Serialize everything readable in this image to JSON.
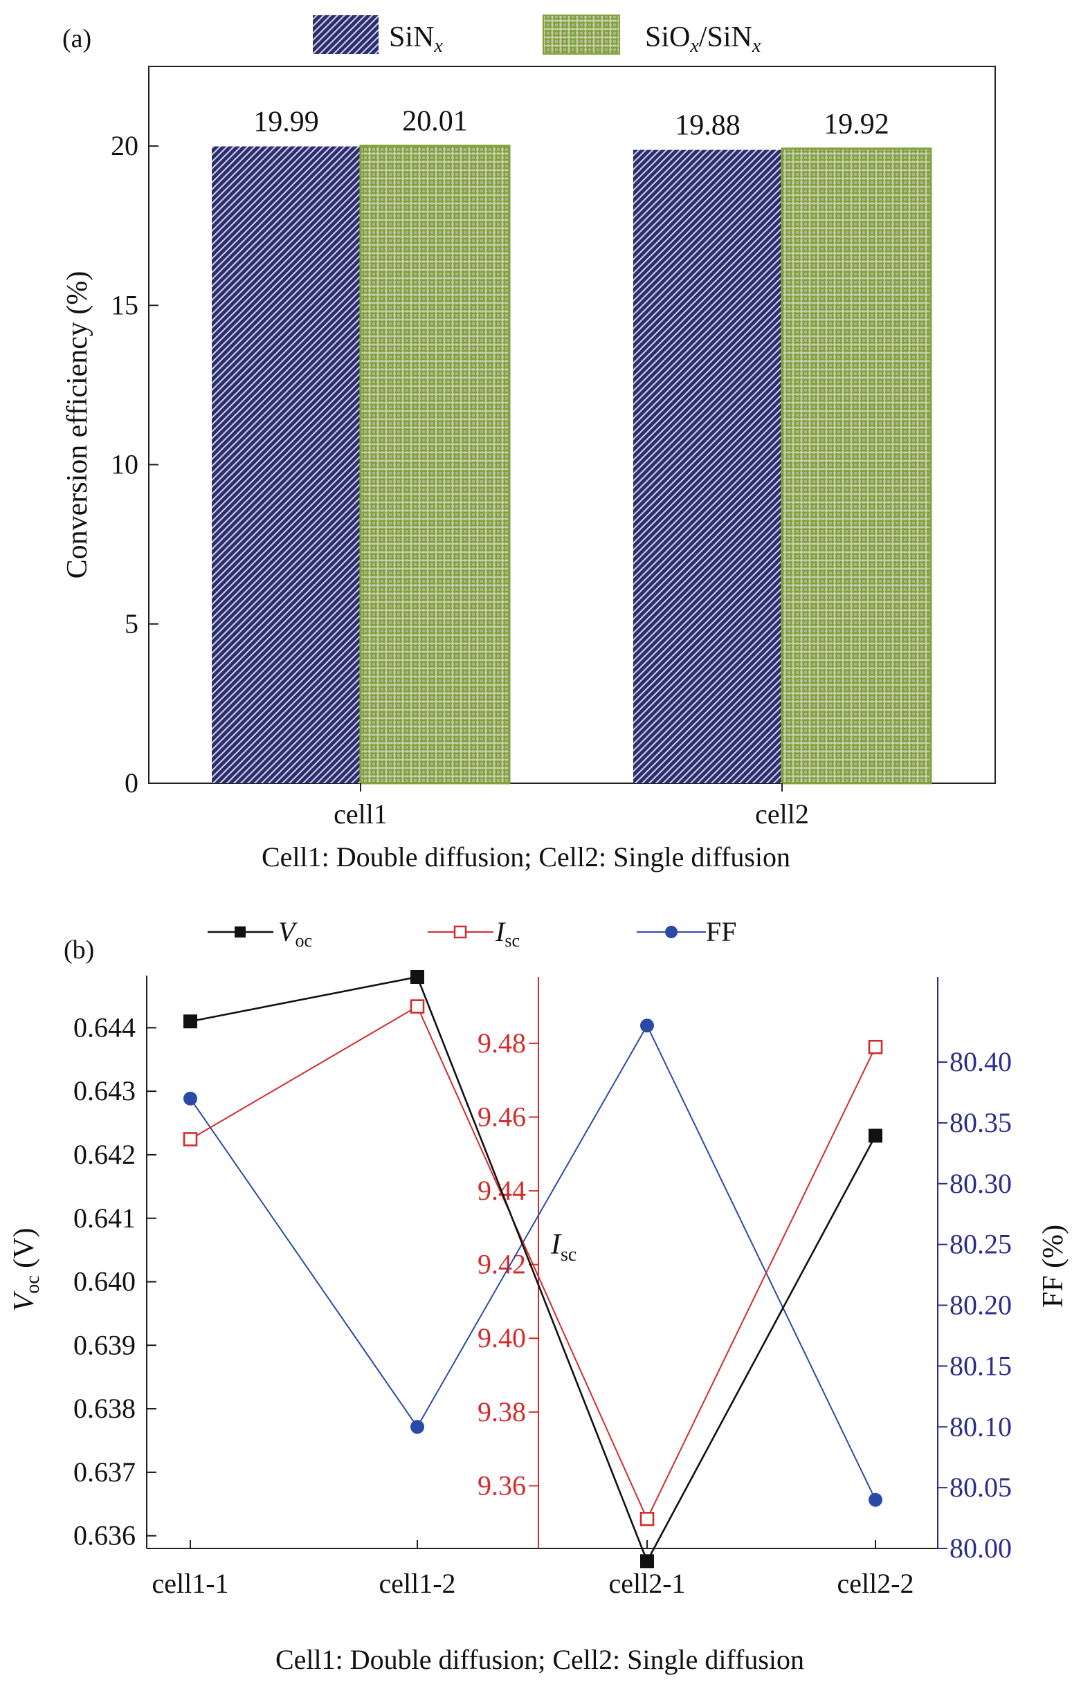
{
  "chart_data": [
    {
      "type": "bar",
      "panel_label": "(a)",
      "categories": [
        "cell1",
        "cell2"
      ],
      "series": [
        {
          "name": "SiN",
          "name_sub": "x",
          "values": [
            19.99,
            19.88
          ],
          "color": "#2b2d6e",
          "pattern": "diagonal-hatch"
        },
        {
          "name": "SiO",
          "name_sub": "x",
          "name_mid": "/SiN",
          "name_sub2": "x",
          "values": [
            20.01,
            19.92
          ],
          "color": "#7fa33a",
          "pattern": "crosshatch"
        }
      ],
      "data_labels": [
        "19.99",
        "20.01",
        "19.88",
        "19.92"
      ],
      "ylabel": "Conversion efficiency (%)",
      "ylim": [
        0,
        22.5
      ],
      "yticks": [
        0,
        5,
        10,
        15,
        20
      ],
      "xlabel": "Cell1: Double diffusion; Cell2: Single diffusion",
      "legend_position": "top-center",
      "grid": false
    },
    {
      "type": "line",
      "panel_label": "(b)",
      "categories": [
        "cell1-1",
        "cell1-2",
        "cell2-1",
        "cell2-2"
      ],
      "series": [
        {
          "name": "V",
          "name_sub": "oc",
          "axis": "left",
          "values": [
            0.6441,
            0.6448,
            0.6356,
            0.6423
          ],
          "color": "#111111",
          "marker": "filled-square"
        },
        {
          "name": "I",
          "name_sub": "sc",
          "axis": "middle",
          "values": [
            9.454,
            9.49,
            9.351,
            9.479
          ],
          "color": "#d42a2a",
          "marker": "open-square"
        },
        {
          "name": "FF",
          "axis": "right",
          "values": [
            80.37,
            80.1,
            80.43,
            80.04
          ],
          "color": "#2b4aa6",
          "marker": "filled-circle"
        }
      ],
      "y_left": {
        "label": "V",
        "label_sub": "oc",
        "label_unit": " (V)",
        "ylim": [
          0.6358,
          0.6448
        ],
        "ticks": [
          "0.636",
          "0.637",
          "0.638",
          "0.639",
          "0.640",
          "0.641",
          "0.642",
          "0.643",
          "0.644"
        ],
        "tick_values": [
          0.636,
          0.637,
          0.638,
          0.639,
          0.64,
          0.641,
          0.642,
          0.643,
          0.644
        ]
      },
      "y_middle": {
        "label": "I",
        "label_sub": "sc",
        "ylim": [
          9.343,
          9.498
        ],
        "ticks": [
          "9.36",
          "9.38",
          "9.40",
          "9.42",
          "9.44",
          "9.46",
          "9.48"
        ],
        "tick_values": [
          9.36,
          9.38,
          9.4,
          9.42,
          9.44,
          9.46,
          9.48
        ],
        "color": "#d42a2a"
      },
      "y_right": {
        "label": "FF (%)",
        "ylim": [
          80.0,
          80.47
        ],
        "ticks": [
          "80.00",
          "80.05",
          "80.10",
          "80.15",
          "80.20",
          "80.25",
          "80.30",
          "80.35",
          "80.40"
        ],
        "tick_values": [
          80.0,
          80.05,
          80.1,
          80.15,
          80.2,
          80.25,
          80.3,
          80.35,
          80.4
        ],
        "color": "#2b2d8a"
      },
      "xlabel": "Cell1: Double diffusion; Cell2: Single diffusion",
      "legend_position": "top",
      "grid": false
    }
  ]
}
